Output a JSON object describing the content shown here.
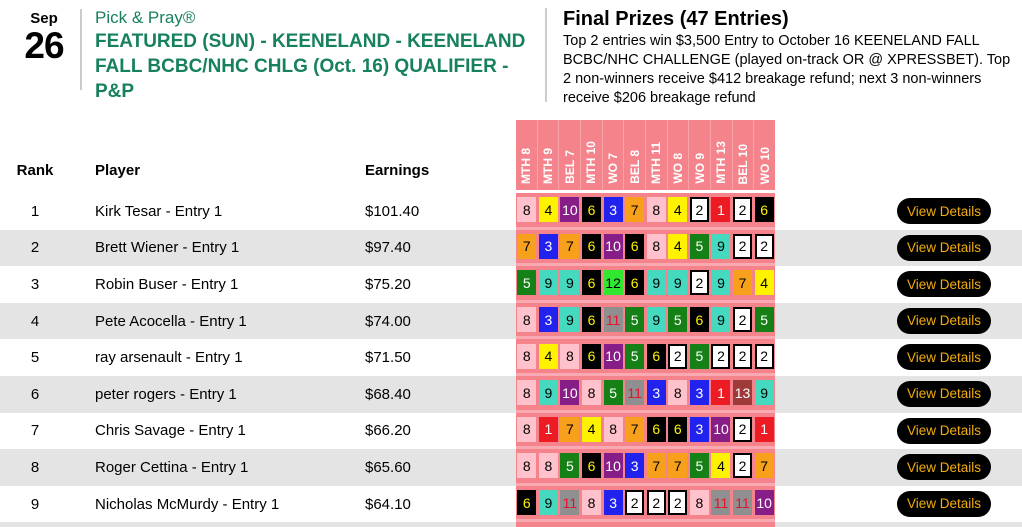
{
  "event": {
    "date_month": "Sep",
    "date_day": "26",
    "game_type": "Pick & Pray®",
    "title": "FEATURED (SUN) - KEENELAND - KEENELAND FALL BCBC/NHC CHLG (Oct. 16) QUALIFIER - P&P"
  },
  "prizes": {
    "heading": "Final Prizes (47 Entries)",
    "description": "Top 2 entries win $3,500 Entry to October 16 KEENELAND FALL BCBC/NHC CHALLENGE (played on-track OR @ XPRESSBET). Top 2 non-winners receive $412 breakage refund; next 3 non-winners receive $206 breakage refund"
  },
  "table": {
    "columns": {
      "rank": "Rank",
      "player": "Player",
      "earnings": "Earnings"
    },
    "race_columns": [
      "MTH 8",
      "MTH 9",
      "BEL 7",
      "MTH 10",
      "WO 7",
      "BEL 8",
      "MTH 11",
      "WO 8",
      "WO 9",
      "MTH 13",
      "BEL 10",
      "WO 10"
    ],
    "view_details_label": "View Details",
    "rows": [
      {
        "rank": "1",
        "player": "Kirk Tesar - Entry 1",
        "earnings": "$101.40",
        "picks": [
          8,
          4,
          10,
          6,
          3,
          7,
          8,
          4,
          2,
          1,
          2,
          6
        ]
      },
      {
        "rank": "2",
        "player": "Brett Wiener - Entry 1",
        "earnings": "$97.40",
        "picks": [
          7,
          3,
          7,
          6,
          10,
          6,
          8,
          4,
          5,
          9,
          2,
          2
        ]
      },
      {
        "rank": "3",
        "player": "Robin Buser - Entry 1",
        "earnings": "$75.20",
        "picks": [
          5,
          9,
          9,
          6,
          12,
          6,
          9,
          9,
          2,
          9,
          7,
          4
        ]
      },
      {
        "rank": "4",
        "player": "Pete Acocella - Entry 1",
        "earnings": "$74.00",
        "picks": [
          8,
          3,
          9,
          6,
          11,
          5,
          9,
          5,
          6,
          9,
          2,
          5
        ]
      },
      {
        "rank": "5",
        "player": "ray arsenault - Entry 1",
        "earnings": "$71.50",
        "picks": [
          8,
          4,
          8,
          6,
          10,
          5,
          6,
          2,
          5,
          2,
          2,
          2
        ]
      },
      {
        "rank": "6",
        "player": "peter rogers - Entry 1",
        "earnings": "$68.40",
        "picks": [
          8,
          9,
          10,
          8,
          5,
          11,
          3,
          8,
          3,
          1,
          13,
          9
        ]
      },
      {
        "rank": "7",
        "player": "Chris Savage - Entry 1",
        "earnings": "$66.20",
        "picks": [
          8,
          1,
          7,
          4,
          8,
          7,
          6,
          6,
          3,
          10,
          2,
          1
        ]
      },
      {
        "rank": "8",
        "player": "Roger Cettina - Entry 1",
        "earnings": "$65.60",
        "picks": [
          8,
          8,
          5,
          6,
          10,
          3,
          7,
          7,
          5,
          4,
          2,
          7
        ]
      },
      {
        "rank": "9",
        "player": "Nicholas McMurdy - Entry 1",
        "earnings": "$64.10",
        "picks": [
          6,
          9,
          11,
          8,
          3,
          2,
          2,
          2,
          8,
          11,
          11,
          10
        ]
      }
    ]
  },
  "colors": {
    "brand_green": "#17805e",
    "salmon_band": "#f4838c",
    "row_stripe": "#e4e4e4",
    "button_bg": "#000000",
    "button_text": "#f2ac0e",
    "saddle_cloth": {
      "1": {
        "bg": "#ed1c24",
        "fg": "#ffffff"
      },
      "2": {
        "bg": "#ffffff",
        "fg": "#000000",
        "border": "#000000"
      },
      "3": {
        "bg": "#2222ee",
        "fg": "#ffffff"
      },
      "4": {
        "bg": "#fff200",
        "fg": "#000000"
      },
      "5": {
        "bg": "#158015",
        "fg": "#ffffff"
      },
      "6": {
        "bg": "#000000",
        "fg": "#fff200"
      },
      "7": {
        "bg": "#f7a01b",
        "fg": "#000000"
      },
      "8": {
        "bg": "#ffc2cd",
        "fg": "#000000"
      },
      "9": {
        "bg": "#45d9bf",
        "fg": "#000000"
      },
      "10": {
        "bg": "#871e87",
        "fg": "#ffffff"
      },
      "11": {
        "bg": "#8f8f8f",
        "fg": "#e8112d"
      },
      "12": {
        "bg": "#2fe82f",
        "fg": "#000000"
      },
      "13": {
        "bg": "#9e3a3a",
        "fg": "#ffffff"
      }
    }
  }
}
